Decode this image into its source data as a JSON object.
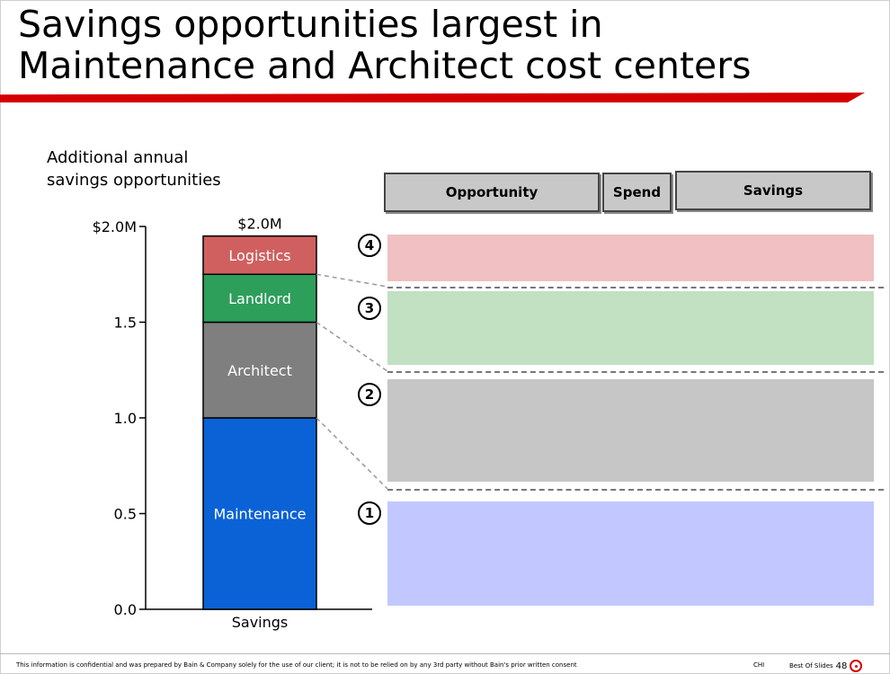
{
  "title": {
    "line1": "Savings opportunities largest in",
    "line2": "Maintenance and Architect cost centers"
  },
  "colors": {
    "accent": "#d40000",
    "maintenance": "#0a62d6",
    "architect": "#7f7f7f",
    "landlord": "#2e9e5b",
    "logistics": "#d06060",
    "panel_1": "#c2c7ff",
    "panel_2": "#c6c6c6",
    "panel_3": "#c2e0c2",
    "panel_4": "#f0c0c2"
  },
  "chart_data": {
    "type": "bar",
    "stacked": true,
    "categories": [
      "Savings"
    ],
    "ylabel": "Additional annual savings opportunities",
    "ylabel_lines": [
      "Additional annual",
      "savings opportunities"
    ],
    "ylim": [
      0,
      2.0
    ],
    "yticks": [
      {
        "value": 0.0,
        "label": "0.0"
      },
      {
        "value": 0.5,
        "label": "0.5"
      },
      {
        "value": 1.0,
        "label": "1.0"
      },
      {
        "value": 1.5,
        "label": "1.5"
      },
      {
        "value": 2.0,
        "label": "$2.0M"
      }
    ],
    "total_label": "$2.0M",
    "series": [
      {
        "name": "Maintenance",
        "values": [
          1.0
        ]
      },
      {
        "name": "Architect",
        "values": [
          0.5
        ]
      },
      {
        "name": "Landlord",
        "values": [
          0.25
        ]
      },
      {
        "name": "Logistics",
        "values": [
          0.2
        ]
      }
    ]
  },
  "table": {
    "headers": [
      "Opportunity",
      "Spend",
      "Savings"
    ]
  },
  "panels": [
    {
      "number": "4"
    },
    {
      "number": "3"
    },
    {
      "number": "2"
    },
    {
      "number": "1"
    }
  ],
  "footer": {
    "note": "This information is confidential and was prepared by Bain & Company solely for the use of our client; it is not to be relied on by any 3rd party without Bain's prior written consent",
    "code": "CHI",
    "slide_label": "Best Of Slides",
    "page": "48"
  }
}
